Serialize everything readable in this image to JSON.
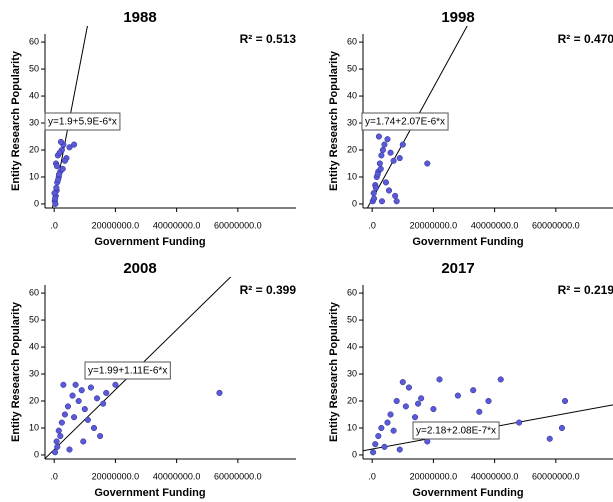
{
  "chart_data": [
    {
      "type": "scatter",
      "title": "1988",
      "r2_annotation": "R² = 0.513",
      "fit": {
        "intercept": 1.9,
        "slope": 5.9e-06,
        "label": "y=1.9+5.9E-6*x"
      },
      "x_label": "Government Funding",
      "y_label": "Entity Research Popularity",
      "color": "#5a5ad8",
      "xlim": [
        -3000000,
        79000000
      ],
      "ylim": [
        -1.5,
        63
      ],
      "xticks": [
        {
          "value": 0,
          "label": ".0"
        },
        {
          "value": 20000000,
          "label": "20000000.0"
        },
        {
          "value": 40000000,
          "label": "40000000.0"
        },
        {
          "value": 60000000,
          "label": "60000000.0"
        }
      ],
      "yticks": [
        0,
        10,
        20,
        30,
        40,
        50,
        60
      ],
      "x": [
        200000,
        500000,
        800000,
        1000000,
        1500000,
        2000000,
        300000,
        600000,
        1200000,
        2500000,
        3000000,
        4000000,
        5000000,
        700000,
        900000,
        1800000,
        2200000,
        400000,
        3500000,
        1600000,
        100000,
        1300000,
        6500000,
        2800000
      ],
      "values": [
        1,
        3,
        5,
        8,
        10,
        12,
        2,
        15,
        18,
        20,
        22,
        17,
        21,
        6,
        14,
        19,
        23,
        0,
        16,
        11,
        4,
        9,
        22,
        13
      ]
    },
    {
      "type": "scatter",
      "title": "1998",
      "r2_annotation": "R² = 0.470",
      "fit": {
        "intercept": 1.74,
        "slope": 2.07e-06,
        "label": "y=1.74+2.07E-6*x"
      },
      "x_label": "Government Funding",
      "y_label": "Entity Research Popularity",
      "color": "#5a5ad8",
      "xlim": [
        -3000000,
        79000000
      ],
      "ylim": [
        -1.5,
        63
      ],
      "xticks": [
        {
          "value": 0,
          "label": ".0"
        },
        {
          "value": 20000000,
          "label": "20000000.0"
        },
        {
          "value": 40000000,
          "label": "40000000.0"
        },
        {
          "value": 60000000,
          "label": "60000000.0"
        }
      ],
      "yticks": [
        0,
        10,
        20,
        30,
        40,
        50,
        60
      ],
      "x": [
        200000,
        500000,
        1000000,
        1500000,
        2000000,
        2500000,
        3000000,
        3500000,
        4000000,
        5000000,
        6000000,
        7000000,
        8000000,
        9000000,
        10000000,
        18000000,
        600000,
        1200000,
        2200000,
        2800000,
        4500000,
        5500000,
        3200000,
        1800000,
        7500000
      ],
      "values": [
        1,
        4,
        7,
        10,
        12,
        15,
        18,
        20,
        22,
        24,
        19,
        16,
        1,
        17,
        22,
        15,
        2,
        6,
        25,
        13,
        8,
        5,
        1,
        11,
        3
      ]
    },
    {
      "type": "scatter",
      "title": "2008",
      "r2_annotation": "R² = 0.399",
      "fit": {
        "intercept": 1.99,
        "slope": 1.11e-06,
        "label": "y=1.99+1.11E-6*x"
      },
      "x_label": "Government Funding",
      "y_label": "Entity Research Popularity",
      "color": "#5a5ad8",
      "xlim": [
        -3000000,
        79000000
      ],
      "ylim": [
        -1.5,
        63
      ],
      "xticks": [
        {
          "value": 0,
          "label": ".0"
        },
        {
          "value": 20000000,
          "label": "20000000.0"
        },
        {
          "value": 40000000,
          "label": "40000000.0"
        },
        {
          "value": 60000000,
          "label": "60000000.0"
        }
      ],
      "yticks": [
        0,
        10,
        20,
        30,
        40,
        50,
        60
      ],
      "x": [
        300000,
        800000,
        1500000,
        2500000,
        3500000,
        4500000,
        6000000,
        7000000,
        8000000,
        9000000,
        10000000,
        11000000,
        12000000,
        13000000,
        14000000,
        15000000,
        17000000,
        20000000,
        54000000,
        1000000,
        2000000,
        5000000,
        3000000,
        6500000,
        9500000,
        16000000
      ],
      "values": [
        1,
        5,
        9,
        12,
        15,
        18,
        22,
        26,
        20,
        24,
        17,
        13,
        25,
        10,
        21,
        7,
        23,
        26,
        23,
        3,
        7,
        2,
        26,
        14,
        5,
        19
      ]
    },
    {
      "type": "scatter",
      "title": "2017",
      "r2_annotation": "R² = 0.219",
      "fit": {
        "intercept": 2.18,
        "slope": 2.08e-07,
        "label": "y=2.18+2.08E-7*x"
      },
      "x_label": "Government Funding",
      "y_label": "Entity Research Popularity",
      "color": "#5a5ad8",
      "xlim": [
        -3000000,
        79000000
      ],
      "ylim": [
        -1.5,
        63
      ],
      "xticks": [
        {
          "value": 0,
          "label": ".0"
        },
        {
          "value": 20000000,
          "label": "20000000.0"
        },
        {
          "value": 40000000,
          "label": "40000000.0"
        },
        {
          "value": 60000000,
          "label": "60000000.0"
        }
      ],
      "yticks": [
        0,
        10,
        20,
        30,
        40,
        50,
        60
      ],
      "x": [
        300000,
        1000000,
        2000000,
        3000000,
        4000000,
        5000000,
        6000000,
        7000000,
        8000000,
        10000000,
        11000000,
        12000000,
        14000000,
        16000000,
        18000000,
        20000000,
        22000000,
        25000000,
        28000000,
        30000000,
        33000000,
        35000000,
        38000000,
        42000000,
        48000000,
        58000000,
        62000000,
        63000000,
        9000000,
        15000000
      ],
      "values": [
        1,
        4,
        7,
        10,
        3,
        12,
        15,
        9,
        20,
        27,
        18,
        25,
        14,
        21,
        5,
        17,
        28,
        11,
        22,
        8,
        24,
        16,
        20,
        28,
        12,
        6,
        10,
        20,
        2,
        19
      ]
    }
  ]
}
